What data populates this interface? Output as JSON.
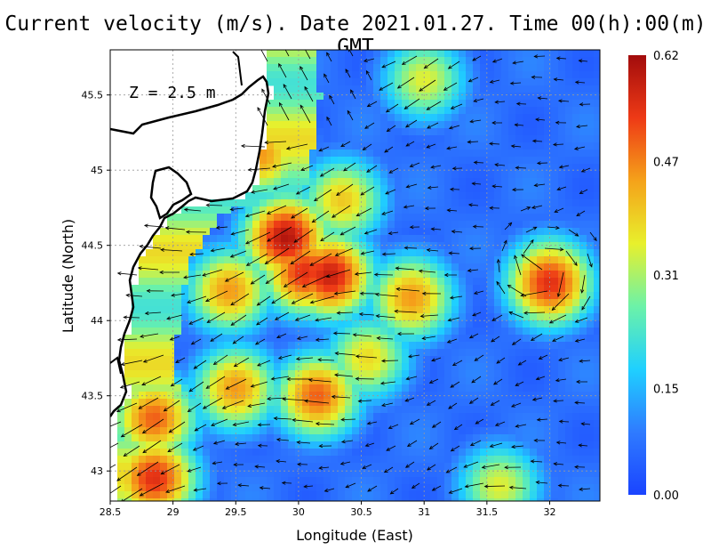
{
  "title": "Current velocity (m/s). Date 2021.01.27. Time 00(h):00(m) GMT",
  "depth_label": "Z = 2.5 m",
  "xlabel": "Longitude (East)",
  "ylabel": "Latitude (North)",
  "map_data": {
    "type": "vector-field-heatmap",
    "lon_range": [
      28.5,
      32.4
    ],
    "lat_range": [
      42.8,
      45.8
    ],
    "x_ticks": [
      "28.5",
      "29",
      "29.5",
      "30",
      "30.5",
      "31",
      "31.5",
      "32"
    ],
    "x_tick_values": [
      28.5,
      29,
      29.5,
      30,
      30.5,
      31,
      31.5,
      32
    ],
    "y_ticks": [
      "43",
      "43.5",
      "44",
      "44.5",
      "45",
      "45.5"
    ],
    "y_tick_values": [
      43,
      43.5,
      44,
      44.5,
      45,
      45.5
    ],
    "grid": true,
    "colorbar": {
      "ticks": [
        "0.62",
        "0.47",
        "0.31",
        "0.15",
        "0.00"
      ],
      "tick_values": [
        0.62,
        0.47,
        0.31,
        0.15,
        0.0
      ],
      "min": 0.0,
      "max": 0.62,
      "colors": [
        "#1a44ff",
        "#2f7bff",
        "#1fd0ff",
        "#6cf2a8",
        "#e8f02c",
        "#f5a21a",
        "#ee3a16",
        "#a20c0c"
      ]
    },
    "hotspots": [
      {
        "lon": 29.9,
        "lat": 44.55,
        "speed": 0.6
      },
      {
        "lon": 30.25,
        "lat": 44.3,
        "speed": 0.58
      },
      {
        "lon": 30.05,
        "lat": 44.32,
        "speed": 0.55
      },
      {
        "lon": 32.0,
        "lat": 44.25,
        "speed": 0.55
      },
      {
        "lon": 29.5,
        "lat": 43.55,
        "speed": 0.45
      },
      {
        "lon": 30.15,
        "lat": 43.5,
        "speed": 0.5
      },
      {
        "lon": 28.85,
        "lat": 43.35,
        "speed": 0.5
      },
      {
        "lon": 28.85,
        "lat": 42.95,
        "speed": 0.55
      },
      {
        "lon": 29.45,
        "lat": 44.2,
        "speed": 0.45
      },
      {
        "lon": 30.9,
        "lat": 44.15,
        "speed": 0.45
      },
      {
        "lon": 30.35,
        "lat": 44.8,
        "speed": 0.4
      },
      {
        "lon": 29.7,
        "lat": 45.1,
        "speed": 0.45
      },
      {
        "lon": 31.0,
        "lat": 45.6,
        "speed": 0.35
      },
      {
        "lon": 30.55,
        "lat": 43.75,
        "speed": 0.38
      },
      {
        "lon": 31.6,
        "lat": 42.9,
        "speed": 0.35
      }
    ]
  }
}
